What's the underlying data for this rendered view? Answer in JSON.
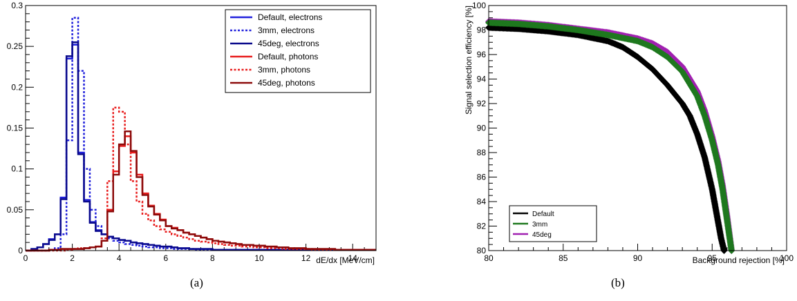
{
  "captions": [
    "(a)",
    "(b)"
  ],
  "chart_data": [
    {
      "type": "histogram",
      "xlabel": "dE/dx [MeV/cm]",
      "ylabel": "",
      "xlim": [
        0,
        15
      ],
      "ylim": [
        0,
        0.3
      ],
      "xticks": [
        0,
        2,
        4,
        6,
        8,
        10,
        12,
        14
      ],
      "yticks": [
        0,
        0.05,
        0.1,
        0.15,
        0.2,
        0.25,
        0.3
      ],
      "ytick_labels": [
        "0",
        "0.05",
        "0.1",
        "0.15",
        "0.2",
        "0.25",
        "0.3"
      ],
      "bin_width": 0.25,
      "x_start": 0,
      "legend_position": "top-right",
      "series": [
        {
          "name": "Default, electrons",
          "color": "#1f1fdc",
          "style": "solid",
          "values": [
            0,
            0.002,
            0.004,
            0.008,
            0.014,
            0.02,
            0.065,
            0.235,
            0.252,
            0.12,
            0.062,
            0.035,
            0.025,
            0.02,
            0.017,
            0.015,
            0.013,
            0.012,
            0.01,
            0.009,
            0.008,
            0.007,
            0.006,
            0.005,
            0.005,
            0.004,
            0.003,
            0.003,
            0.002,
            0.002,
            0.002,
            0.002,
            0.001,
            0.001,
            0.001,
            0.001,
            0.001,
            0.001,
            0.001,
            0.001,
            0.001,
            0.001,
            0.001,
            0.001,
            0.001,
            0.001,
            0.001,
            0.001,
            0.001,
            0.001,
            0.001,
            0.001,
            0.001,
            0.001,
            0.001,
            0.001,
            0.001,
            0.001,
            0.001,
            0.001
          ]
        },
        {
          "name": "3mm, electrons",
          "color": "#1f1fdc",
          "style": "dotted",
          "values": [
            0,
            0,
            0,
            0,
            0.001,
            0.003,
            0.02,
            0.135,
            0.285,
            0.22,
            0.1,
            0.05,
            0.03,
            0.02,
            0.015,
            0.012,
            0.01,
            0.008,
            0.007,
            0.006,
            0.005,
            0.004,
            0.004,
            0.003,
            0.003,
            0.002,
            0.002,
            0.002,
            0.002,
            0.001,
            0.001,
            0.001,
            0.001,
            0.001,
            0.001,
            0.001,
            0.001,
            0.001,
            0.001,
            0.001,
            0.001,
            0.001,
            0.001,
            0.001,
            0.001,
            0.001,
            0.001,
            0.001,
            0.001,
            0.001,
            0.001,
            0.001,
            0.001,
            0.001,
            0.001,
            0.001,
            0.001,
            0.001,
            0.001,
            0.001
          ]
        },
        {
          "name": "45deg, electrons",
          "color": "#0a0a8c",
          "style": "solid",
          "values": [
            0,
            0.002,
            0.004,
            0.008,
            0.013,
            0.02,
            0.063,
            0.238,
            0.255,
            0.118,
            0.06,
            0.034,
            0.024,
            0.02,
            0.017,
            0.015,
            0.013,
            0.012,
            0.01,
            0.009,
            0.008,
            0.007,
            0.006,
            0.005,
            0.005,
            0.004,
            0.003,
            0.003,
            0.002,
            0.002,
            0.002,
            0.002,
            0.001,
            0.001,
            0.001,
            0.001,
            0.001,
            0.001,
            0.001,
            0.001,
            0.001,
            0.001,
            0.001,
            0.001,
            0.001,
            0.001,
            0.001,
            0.001,
            0.001,
            0.001,
            0.001,
            0.001,
            0.001,
            0.001,
            0.001,
            0.001,
            0.001,
            0.001,
            0.001,
            0.001
          ]
        },
        {
          "name": "Default, photons",
          "color": "#e81c1c",
          "style": "solid",
          "values": [
            0,
            0,
            0,
            0,
            0.001,
            0.001,
            0.002,
            0.002,
            0.002,
            0.002,
            0.003,
            0.004,
            0.005,
            0.012,
            0.05,
            0.097,
            0.128,
            0.14,
            0.12,
            0.093,
            0.07,
            0.055,
            0.045,
            0.038,
            0.03,
            0.028,
            0.025,
            0.022,
            0.02,
            0.018,
            0.016,
            0.014,
            0.012,
            0.011,
            0.01,
            0.009,
            0.008,
            0.007,
            0.007,
            0.006,
            0.006,
            0.005,
            0.005,
            0.004,
            0.004,
            0.003,
            0.003,
            0.003,
            0.002,
            0.002,
            0.002,
            0.002,
            0.002,
            0.001,
            0.001,
            0.001,
            0.001,
            0.001,
            0.001,
            0.001
          ]
        },
        {
          "name": "3mm, photons",
          "color": "#e81c1c",
          "style": "dotted",
          "values": [
            0,
            0,
            0,
            0,
            0,
            0,
            0,
            0.001,
            0.002,
            0.003,
            0.003,
            0.004,
            0.005,
            0.015,
            0.085,
            0.175,
            0.17,
            0.13,
            0.085,
            0.06,
            0.045,
            0.037,
            0.03,
            0.026,
            0.023,
            0.02,
            0.018,
            0.016,
            0.014,
            0.012,
            0.011,
            0.01,
            0.009,
            0.008,
            0.007,
            0.006,
            0.006,
            0.005,
            0.005,
            0.004,
            0.004,
            0.003,
            0.003,
            0.003,
            0.002,
            0.002,
            0.002,
            0.002,
            0.002,
            0.001,
            0.001,
            0.001,
            0.001,
            0.001,
            0.001,
            0.001,
            0.001,
            0.001,
            0.001,
            0.001
          ]
        },
        {
          "name": "45deg, photons",
          "color": "#8c0a0a",
          "style": "solid",
          "values": [
            0,
            0,
            0,
            0,
            0.001,
            0.001,
            0.002,
            0.002,
            0.002,
            0.002,
            0.003,
            0.004,
            0.005,
            0.012,
            0.048,
            0.093,
            0.13,
            0.146,
            0.122,
            0.09,
            0.068,
            0.054,
            0.044,
            0.037,
            0.03,
            0.027,
            0.025,
            0.022,
            0.02,
            0.018,
            0.016,
            0.014,
            0.012,
            0.011,
            0.01,
            0.009,
            0.008,
            0.007,
            0.007,
            0.006,
            0.006,
            0.005,
            0.005,
            0.004,
            0.004,
            0.003,
            0.003,
            0.003,
            0.002,
            0.002,
            0.002,
            0.002,
            0.002,
            0.001,
            0.001,
            0.001,
            0.001,
            0.001,
            0.001,
            0.001
          ]
        }
      ]
    },
    {
      "type": "scatter",
      "xlabel": "Background rejection [%]",
      "ylabel": "Signal selection efficiency [%]",
      "xlim": [
        80,
        100
      ],
      "ylim": [
        80,
        100
      ],
      "xticks": [
        80,
        85,
        90,
        95,
        100
      ],
      "yticks": [
        80,
        82,
        84,
        86,
        88,
        90,
        92,
        94,
        96,
        98,
        100
      ],
      "legend_position": "bottom-left",
      "series": [
        {
          "name": "Default",
          "color": "#000000",
          "points": [
            [
              80,
              98.2
            ],
            [
              82,
              98.1
            ],
            [
              84,
              97.9
            ],
            [
              86,
              97.6
            ],
            [
              88,
              97.1
            ],
            [
              89,
              96.6
            ],
            [
              90,
              95.8
            ],
            [
              91,
              94.8
            ],
            [
              92,
              93.5
            ],
            [
              93,
              92
            ],
            [
              93.5,
              91
            ],
            [
              94,
              89.5
            ],
            [
              94.5,
              87.6
            ],
            [
              95,
              85
            ],
            [
              95.3,
              83
            ],
            [
              95.6,
              81
            ],
            [
              95.8,
              80
            ]
          ]
        },
        {
          "name": "3mm",
          "color": "#1e781e",
          "points": [
            [
              80,
              98.6
            ],
            [
              82,
              98.5
            ],
            [
              84,
              98.3
            ],
            [
              86,
              98
            ],
            [
              88,
              97.6
            ],
            [
              90,
              97.1
            ],
            [
              91,
              96.6
            ],
            [
              92,
              95.8
            ],
            [
              93,
              94.6
            ],
            [
              93.5,
              93.6
            ],
            [
              94,
              92.6
            ],
            [
              94.5,
              91
            ],
            [
              95,
              89
            ],
            [
              95.4,
              87
            ],
            [
              95.7,
              85
            ],
            [
              96,
              82.5
            ],
            [
              96.3,
              80
            ]
          ]
        },
        {
          "name": "45deg",
          "color": "#a020b0",
          "points": [
            [
              80,
              98.7
            ],
            [
              82,
              98.6
            ],
            [
              84,
              98.4
            ],
            [
              86,
              98.1
            ],
            [
              88,
              97.8
            ],
            [
              90,
              97.3
            ],
            [
              91,
              96.9
            ],
            [
              92,
              96.2
            ],
            [
              93,
              95
            ],
            [
              93.5,
              94
            ],
            [
              94,
              93
            ],
            [
              94.5,
              91.4
            ],
            [
              95,
              89.3
            ],
            [
              95.4,
              87.3
            ],
            [
              95.7,
              85.3
            ],
            [
              96,
              82.8
            ],
            [
              96.3,
              80
            ]
          ]
        }
      ]
    }
  ]
}
